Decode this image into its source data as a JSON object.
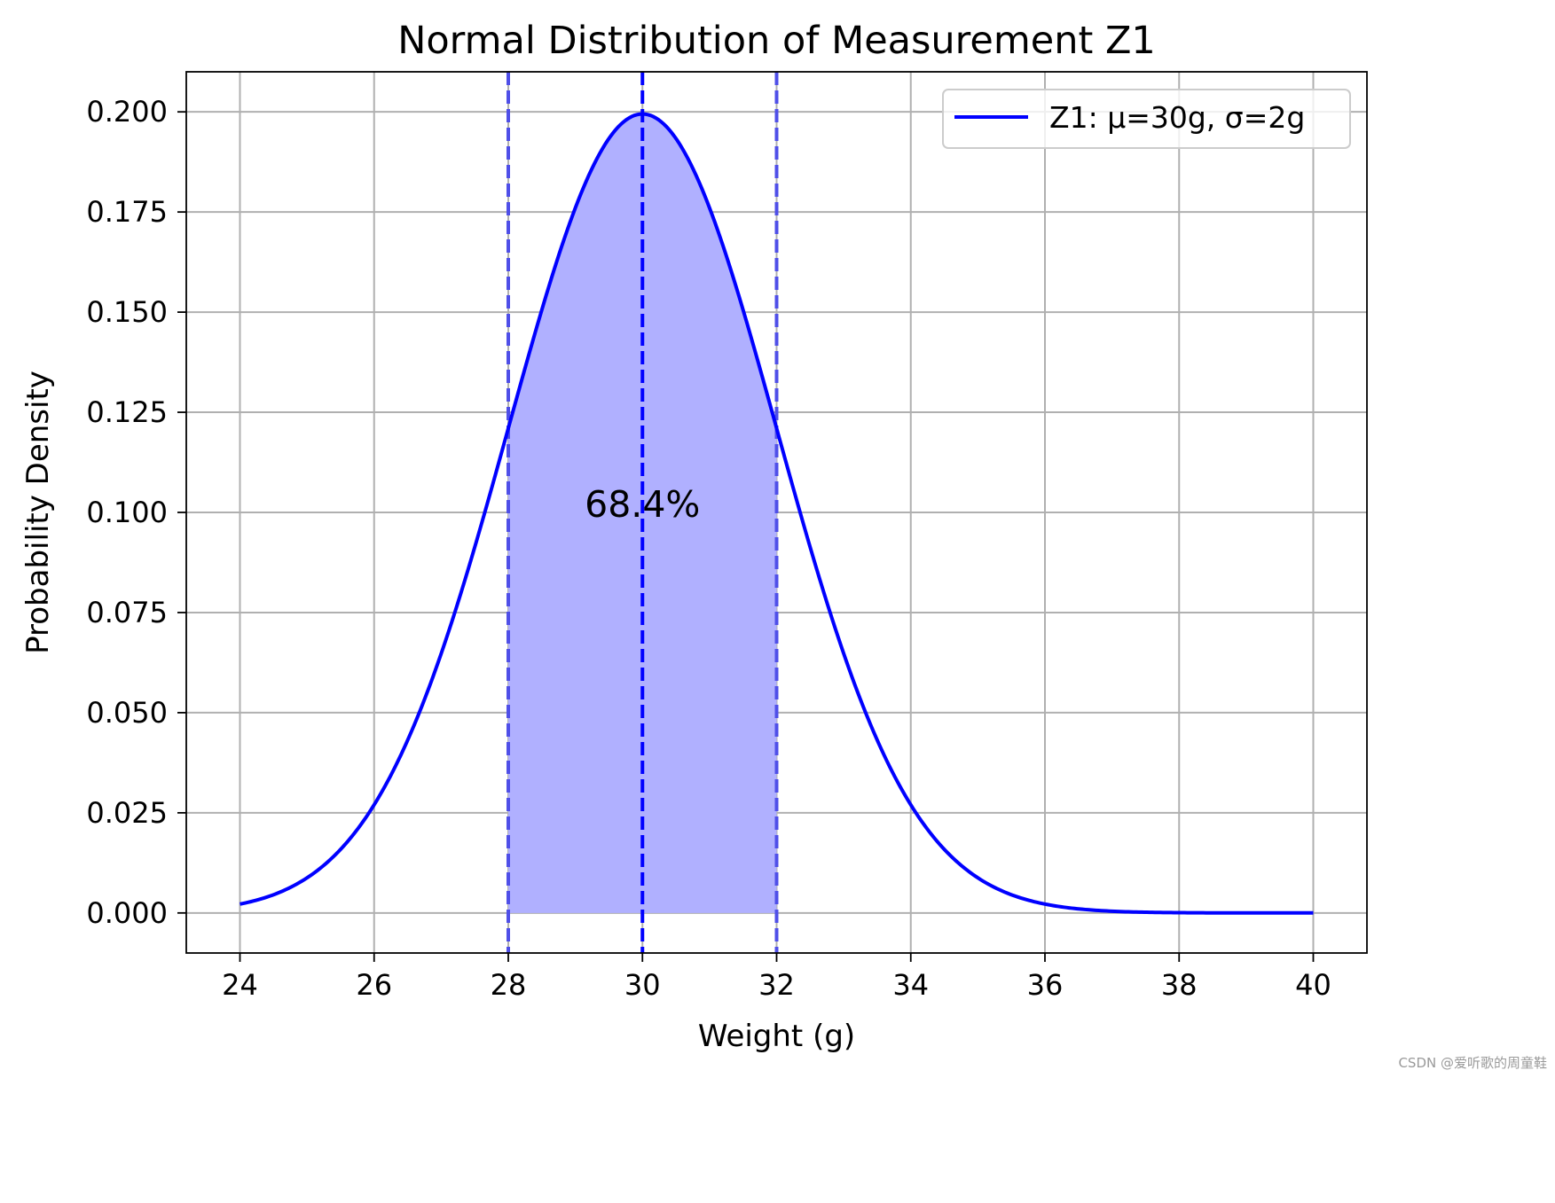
{
  "chart_data": {
    "type": "line",
    "title": "Normal Distribution of Measurement Z1",
    "xlabel": "Weight (g)",
    "ylabel": "Probability Density",
    "xlim": [
      23.2,
      40.8
    ],
    "ylim": [
      -0.01,
      0.21
    ],
    "x_ticks": [
      24,
      26,
      28,
      30,
      32,
      34,
      36,
      38,
      40
    ],
    "x_tick_labels": [
      "24",
      "26",
      "28",
      "30",
      "32",
      "34",
      "36",
      "38",
      "40"
    ],
    "y_ticks": [
      0.0,
      0.025,
      0.05,
      0.075,
      0.1,
      0.125,
      0.15,
      0.175,
      0.2
    ],
    "y_tick_labels": [
      "0.000",
      "0.025",
      "0.050",
      "0.075",
      "0.100",
      "0.125",
      "0.150",
      "0.175",
      "0.200"
    ],
    "grid": true,
    "legend_position": "top-right",
    "series": [
      {
        "name": "Z1: μ=30g, σ=2g",
        "color": "#0000ff",
        "distribution": "normal",
        "mu": 30,
        "sigma": 2,
        "x_range": [
          24,
          40
        ],
        "x": [
          24,
          25,
          26,
          27,
          28,
          29,
          30,
          31,
          32,
          33,
          34,
          35,
          36,
          37,
          38,
          39,
          40
        ],
        "y": [
          0.0022,
          0.0088,
          0.027,
          0.0648,
          0.121,
          0.176,
          0.1995,
          0.176,
          0.121,
          0.0648,
          0.027,
          0.0088,
          0.0022,
          0.0004,
          0.0001,
          0.0,
          0.0
        ]
      }
    ],
    "shaded_region": {
      "x_range": [
        28,
        32
      ],
      "color": "#b0b0ff"
    },
    "reference_lines": [
      {
        "x": 28,
        "style": "dashed",
        "color": "#4f4fe8"
      },
      {
        "x": 30,
        "style": "dashed",
        "color": "#0000ff"
      },
      {
        "x": 32,
        "style": "dashed",
        "color": "#4f4fe8"
      }
    ],
    "annotations": [
      {
        "text": "68.4%",
        "x": 30,
        "y": 0.102
      }
    ]
  },
  "watermark": "CSDN @爱听歌的周童鞋"
}
